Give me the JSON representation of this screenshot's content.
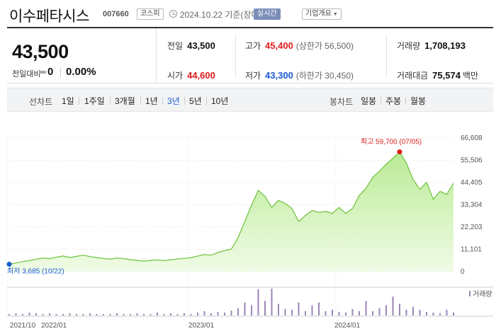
{
  "header": {
    "name": "이수페타시스",
    "code": "007660",
    "market": "코스피",
    "date": "2024.10.22 기준(장마감)",
    "realtime": "실시간",
    "overview": "기업개요"
  },
  "summary": {
    "price": "43,500",
    "change_label": "전일대비",
    "change": "0",
    "change_pct": "0.00%",
    "stats": {
      "prev_label": "전일",
      "prev": "43,500",
      "high_label": "고가",
      "high": "45,400",
      "upper": "(상한가 56,500)",
      "volume_label": "거래량",
      "volume": "1,708,193",
      "open_label": "시가",
      "open": "44,600",
      "low_label": "저가",
      "low": "43,300",
      "lower": "(하한가 30,450)",
      "amount_label": "거래대금",
      "amount": "75,574",
      "amount_unit": "백만"
    }
  },
  "toolbar": {
    "line_label": "선차트",
    "periods": [
      "1일",
      "1주일",
      "3개월",
      "1년",
      "3년",
      "5년",
      "10년"
    ],
    "active_period": "3년",
    "candle_label": "봉차트",
    "candles": [
      "일봉",
      "주봉",
      "월봉"
    ]
  },
  "colors": {
    "up": "#e01b1b",
    "down": "#1a5bd1",
    "line": "#6cc23a",
    "fill": "#d8f3c4",
    "volume": "#9b86b6"
  },
  "chart_data": {
    "type": "area",
    "y_ticks": [
      "66,608",
      "55,506",
      "44,405",
      "33,304",
      "22,203",
      "11,101",
      "0"
    ],
    "ylim": [
      0,
      66608
    ],
    "x_tick_labels": [
      "2021/10",
      "2022/01",
      "2023/01",
      "2024/01"
    ],
    "high_label": "최고 59,700 (07/05)",
    "low_label": "최저 3,685 (10/22)",
    "volume_legend": "거래량",
    "series": [
      {
        "values": [
          3685,
          4300,
          5000,
          5500,
          6200,
          6800,
          6500,
          7200,
          7800,
          7000,
          7600,
          8200,
          7500,
          7000,
          6600,
          6200,
          6800,
          6500,
          6000,
          5600,
          5200,
          5600,
          5800,
          5500,
          5900,
          6300,
          6600,
          7000,
          7800,
          8500,
          8200,
          9500,
          10500,
          11200,
          17000,
          25000,
          33000,
          40500,
          37500,
          32000,
          35500,
          34000,
          31500,
          25000,
          28000,
          30500,
          29500,
          30000,
          29000,
          32000,
          29000,
          31500,
          38000,
          41500,
          47000,
          50000,
          53500,
          56500,
          59700,
          54000,
          46000,
          41000,
          44500,
          36000,
          40000,
          38500,
          44000
        ]
      }
    ],
    "volume": [
      2,
      3,
      2,
      4,
      3,
      2,
      3,
      2,
      2,
      3,
      2,
      2,
      3,
      2,
      2,
      2,
      3,
      2,
      2,
      3,
      2,
      2,
      4,
      2,
      3,
      2,
      3,
      2,
      4,
      6,
      3,
      5,
      4,
      7,
      10,
      18,
      14,
      36,
      20,
      37,
      16,
      9,
      8,
      18,
      6,
      14,
      18,
      6,
      8,
      5,
      4,
      9,
      6,
      20,
      6,
      10,
      14,
      26,
      16,
      8,
      12,
      8,
      5,
      4,
      3,
      8,
      4
    ]
  }
}
